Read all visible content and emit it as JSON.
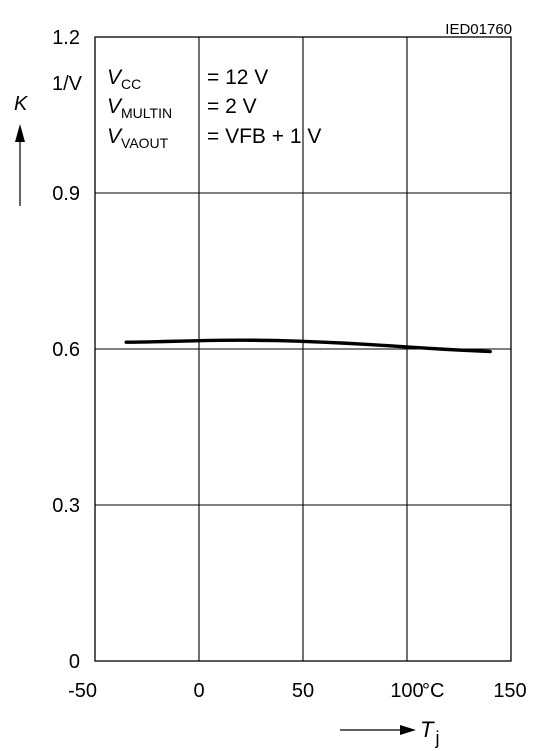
{
  "doc_id": "IED01760",
  "chart_data": {
    "type": "line",
    "x": [
      -35,
      -20,
      0,
      20,
      40,
      60,
      80,
      100,
      120,
      140
    ],
    "series": [
      {
        "values": [
          0.613,
          0.614,
          0.616,
          0.617,
          0.616,
          0.613,
          0.609,
          0.604,
          0.599,
          0.595
        ]
      }
    ],
    "xlim": [
      -50,
      150
    ],
    "ylim": [
      0,
      1.2
    ],
    "x_ticks": [
      "-50",
      "0",
      "50",
      "100",
      "150"
    ],
    "y_ticks": [
      "0",
      "0.3",
      "0.6",
      "0.9",
      "1.2"
    ],
    "x_unit": "°C",
    "y_unit": "1/V",
    "ylabel": "K",
    "xlabel_main": "T",
    "xlabel_sub": "j",
    "grid": true
  },
  "conditions": [
    {
      "sym": "V",
      "sub": "CC",
      "val": "= 12 V"
    },
    {
      "sym": "V",
      "sub": "MULTIN",
      "val": "= 2 V"
    },
    {
      "sym": "V",
      "sub": "VAOUT",
      "val": "= VFB + 1 V"
    }
  ],
  "colors": {
    "line": "#000000",
    "grid": "#000000",
    "background": "#ffffff"
  }
}
